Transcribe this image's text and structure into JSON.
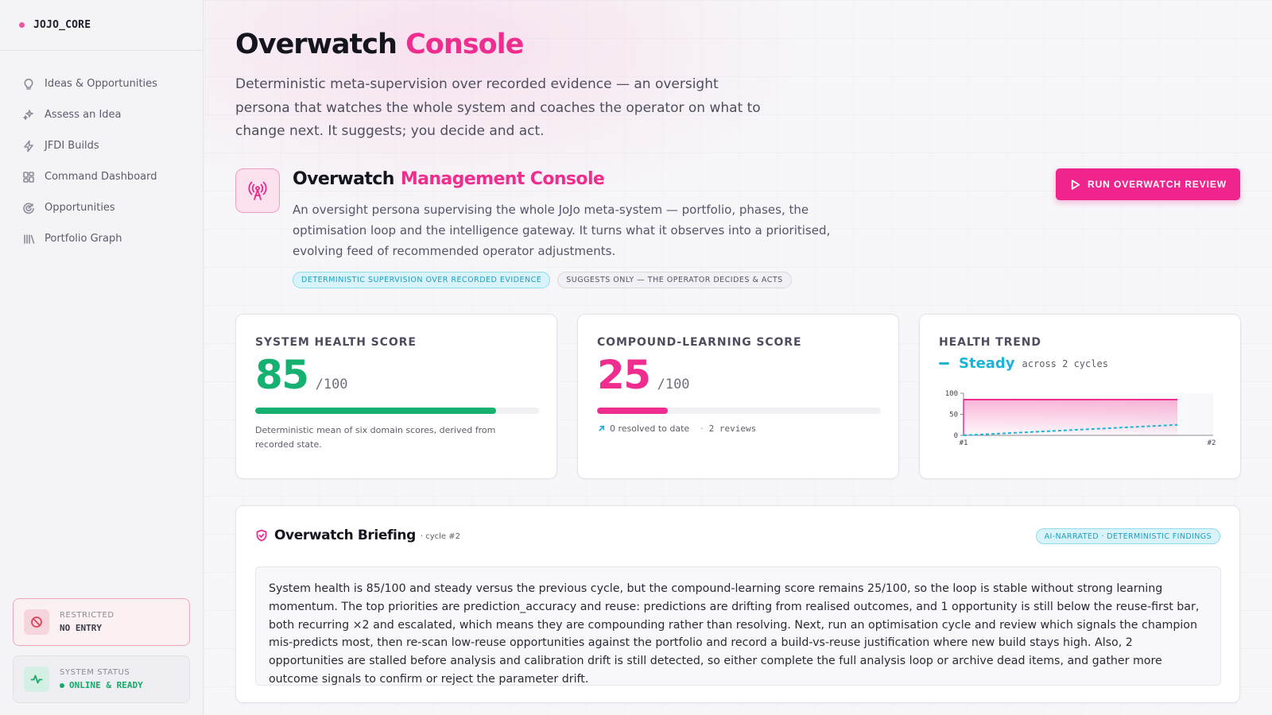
{
  "brand": {
    "name": "JOJO_CORE",
    "dot_color": "#f0559e"
  },
  "sidebar": {
    "items": [
      {
        "label": "Ideas & Opportunities",
        "icon": "lightbulb-icon"
      },
      {
        "label": "Assess an Idea",
        "icon": "sparkles-icon"
      },
      {
        "label": "JFDI Builds",
        "icon": "lightning-icon"
      },
      {
        "label": "Command Dashboard",
        "icon": "dashboard-grid-icon"
      },
      {
        "label": "Opportunities",
        "icon": "radar-icon"
      },
      {
        "label": "Portfolio Graph",
        "icon": "library-icon"
      }
    ],
    "restricted": {
      "label": "RESTRICTED",
      "value": "NO ENTRY",
      "icon": "no-entry-icon"
    },
    "system_status": {
      "label": "SYSTEM STATUS",
      "value": "ONLINE & READY",
      "icon": "activity-icon"
    }
  },
  "header": {
    "title_main": "Overwatch",
    "title_accent": "Console",
    "intro": "Deterministic meta-supervision over recorded evidence — an oversight persona that watches the whole system and coaches the operator on what to change next. It suggests; you decide and act."
  },
  "hero": {
    "icon": "broadcast-tower-icon",
    "title_main": "Overwatch",
    "title_accent": "Management Console",
    "description": "An oversight persona supervising the whole JoJo meta-system — portfolio, phases, the optimisation loop and the intelligence gateway. It turns what it observes into a prioritised, evolving feed of recommended operator adjustments.",
    "chips": [
      "DETERMINISTIC SUPERVISION OVER RECORDED EVIDENCE",
      "SUGGESTS ONLY — THE OPERATOR DECIDES & ACTS"
    ],
    "run_button": "RUN OVERWATCH REVIEW"
  },
  "health_card": {
    "title": "SYSTEM HEALTH SCORE",
    "score": "85",
    "suffix": "/100",
    "progress": 0.85,
    "color": "#16b070",
    "note": "Deterministic mean of six domain scores, derived from recorded state."
  },
  "learning_card": {
    "title": "COMPOUND-LEARNING SCORE",
    "score": "25",
    "suffix": "/100",
    "progress": 0.25,
    "color": "#ef2d8f",
    "resolved": "0 resolved to date",
    "reviews": "2 reviews"
  },
  "trend_card": {
    "title": "HEALTH TREND",
    "trend_word": "Steady",
    "cycles_text": "across 2 cycles",
    "color": "#1bb4d8"
  },
  "chart_data": {
    "type": "area",
    "x": [
      "#1",
      "#2"
    ],
    "yticks": [
      0,
      50,
      100
    ],
    "ylim": [
      0,
      100
    ],
    "series": [
      {
        "values": [
          85,
          85
        ],
        "color": "#ef2d8f"
      },
      {
        "values": [
          0,
          25
        ],
        "color": "#1bb4d8"
      }
    ]
  },
  "briefing": {
    "title": "Overwatch Briefing",
    "cycle": "· cycle #2",
    "chip": "AI-NARRATED · DETERMINISTIC FINDINGS",
    "body": "System health is 85/100 and steady versus the previous cycle, but the compound-learning score remains 25/100, so the loop is stable without strong learning momentum. The top priorities are prediction_accuracy and reuse: predictions are drifting from realised outcomes, and 1 opportunity is still below the reuse-first bar, both recurring ×2 and escalated, which means they are compounding rather than resolving. Next, run an optimisation cycle and review which signals the champion mis-predicts most, then re-scan low-reuse opportunities against the portfolio and record a build-vs-reuse justification where new build stays high. Also, 2 opportunities are stalled before analysis and calibration drift is still detected, so either complete the full analysis loop or archive dead items, and gather more outcome signals to confirm or reject the parameter drift."
  }
}
